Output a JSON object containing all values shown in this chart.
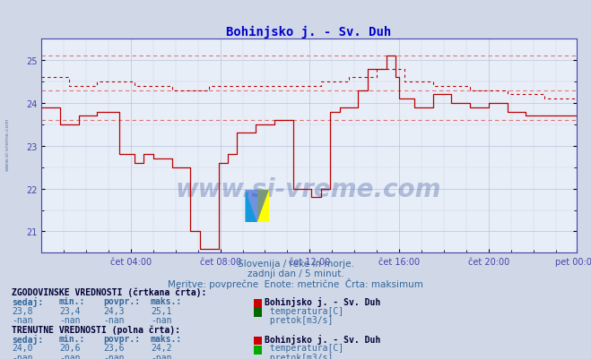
{
  "title": "Bohinjsko j. - Sv. Duh",
  "bg_color": "#d0d8e8",
  "plot_bg_color": "#e8eef8",
  "grid_color_major": "#b8c4d8",
  "grid_color_minor": "#ccd4e4",
  "title_color": "#0000cc",
  "axis_color": "#4444aa",
  "text_color": "#336699",
  "watermark_color": "#1a3a8a",
  "subtitle1": "Slovenija / reke in morje.",
  "subtitle2": "zadnji dan / 5 minut.",
  "subtitle3": "Meritve: povprečne  Enote: metrične  Črta: maksimum",
  "xlabel_times": [
    "čet 04:00",
    "čet 08:00",
    "čet 12:00",
    "čet 16:00",
    "čet 20:00",
    "pet 00:00"
  ],
  "ylim": [
    20.5,
    25.5
  ],
  "yticks": [
    21,
    22,
    23,
    24,
    25
  ],
  "solid_line_color": "#bb0000",
  "dashed_line_color": "#bb0000",
  "dashed_hline_color": "#dd6666",
  "hist_section_title": "ZGODOVINSKE VREDNOSTI (črtkana črta):",
  "curr_section_title": "TRENUTNE VREDNOSTI (polna črta):",
  "col_headers": [
    "sedaj:",
    "min.:",
    "povpr.:",
    "maks.:"
  ],
  "hist_vals_temp": [
    "23,8",
    "23,4",
    "24,3",
    "25,1"
  ],
  "hist_vals_pretok": [
    "-nan",
    "-nan",
    "-nan",
    "-nan"
  ],
  "curr_vals_temp": [
    "24,0",
    "20,6",
    "23,6",
    "24,2"
  ],
  "curr_vals_pretok": [
    "-nan",
    "-nan",
    "-nan",
    "-nan"
  ],
  "station_name": "Bohinjsko j. - Sv. Duh",
  "temp_label": "temperatura[C]",
  "pretok_label": "pretok[m3/s]",
  "temp_color_box": "#cc0000",
  "pretok_color_box_hist": "#006600",
  "pretok_color_box_curr": "#00aa00",
  "watermark": "www.si-vreme.com",
  "n_points": 288,
  "hline_vals": [
    24.3,
    25.1,
    23.6
  ]
}
